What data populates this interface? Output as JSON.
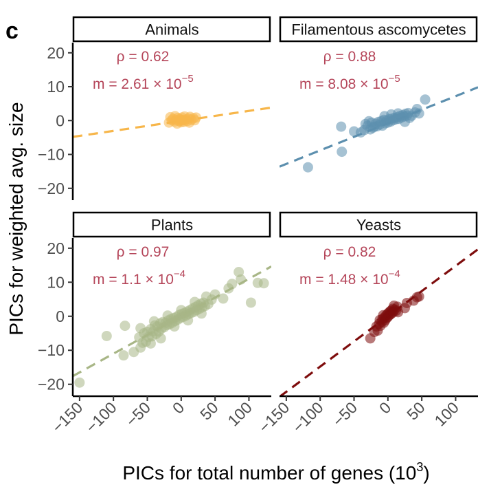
{
  "figure_label": "c",
  "chart_data": {
    "type": "scatter",
    "xlabel": "PICs for total number of genes (10",
    "xlabel_sup": "3",
    "xlabel_close": ")",
    "ylabel": "PICs for weighted avg. size",
    "xlim": [
      -160,
      133
    ],
    "ylim": [
      -23.5,
      23
    ],
    "x_ticks": [
      -150,
      -100,
      -50,
      0,
      50,
      100
    ],
    "x_tick_labels": [
      "−150",
      "−100",
      "−50",
      "0",
      "50",
      "100"
    ],
    "y_ticks": [
      20,
      10,
      0,
      -10,
      -20
    ],
    "y_tick_labels": [
      "20",
      "10",
      "0",
      "−10",
      "−20"
    ],
    "panels": [
      {
        "name": "Animals",
        "color": "#F7B64A",
        "rho_label": "ρ = 0.62",
        "m_label": "m = 2.61 × 10",
        "m_exp": "−5",
        "slope": 0.0295,
        "intercept": -0.1,
        "points": [
          [
            -18,
            -0.6
          ],
          [
            -14,
            0.1
          ],
          [
            -12,
            0.5
          ],
          [
            -10,
            -0.3
          ],
          [
            -8,
            0.2
          ],
          [
            -6,
            -0.9
          ],
          [
            -5,
            0.8
          ],
          [
            -3,
            -0.2
          ],
          [
            -2,
            0.4
          ],
          [
            0,
            -0.5
          ],
          [
            1,
            0.9
          ],
          [
            2,
            0.1
          ],
          [
            4,
            -0.4
          ],
          [
            5,
            1.2
          ],
          [
            7,
            0.3
          ],
          [
            9,
            -0.1
          ],
          [
            11,
            0.6
          ],
          [
            13,
            1.1
          ],
          [
            15,
            0.2
          ],
          [
            18,
            0.7
          ],
          [
            20,
            0.1
          ],
          [
            22,
            0.9
          ],
          [
            -16,
            1.0
          ],
          [
            -9,
            1.3
          ],
          [
            12,
            -0.6
          ],
          [
            -1,
            0.0
          ],
          [
            3,
            0.2
          ]
        ]
      },
      {
        "name": "Filamentous ascomycetes",
        "color": "#5C8FAE",
        "rho_label": "ρ = 0.88",
        "m_label": "m = 8.08 × 10",
        "m_exp": "−5",
        "slope": 0.08,
        "intercept": -0.8,
        "points": [
          [
            -118,
            -13.8
          ],
          [
            -69,
            -1.8
          ],
          [
            -68,
            -9.2
          ],
          [
            -50,
            -3.2
          ],
          [
            -40,
            -3.5
          ],
          [
            -35,
            -2.8
          ],
          [
            -30,
            -1.5
          ],
          [
            -26,
            -2.6
          ],
          [
            -24,
            -0.6
          ],
          [
            -20,
            -1.8
          ],
          [
            -18,
            -0.9
          ],
          [
            -16,
            -1.7
          ],
          [
            -14,
            -0.4
          ],
          [
            -12,
            -1.2
          ],
          [
            -10,
            -0.2
          ],
          [
            -8,
            -1.5
          ],
          [
            -6,
            0.2
          ],
          [
            -4,
            -0.8
          ],
          [
            -2,
            0.0
          ],
          [
            0,
            -0.6
          ],
          [
            2,
            0.4
          ],
          [
            4,
            -0.3
          ],
          [
            6,
            0.6
          ],
          [
            8,
            0.1
          ],
          [
            10,
            0.8
          ],
          [
            12,
            0.4
          ],
          [
            14,
            1.0
          ],
          [
            16,
            0.5
          ],
          [
            18,
            1.4
          ],
          [
            20,
            0.9
          ],
          [
            22,
            1.6
          ],
          [
            24,
            1.2
          ],
          [
            26,
            2.0
          ],
          [
            28,
            1.4
          ],
          [
            30,
            2.2
          ],
          [
            32,
            0.8
          ],
          [
            35,
            1.4
          ],
          [
            40,
            2.4
          ],
          [
            43,
            3.4
          ],
          [
            46,
            2.1
          ],
          [
            55,
            6.2
          ],
          [
            -22,
            -2.1
          ],
          [
            -28,
            -0.2
          ],
          [
            -33,
            -1.0
          ],
          [
            5,
            1.8
          ],
          [
            15,
            2.1
          ],
          [
            -5,
            1.3
          ],
          [
            25,
            -0.4
          ]
        ]
      },
      {
        "name": "Plants",
        "color": "#A8B686",
        "rho_label": "ρ = 0.97",
        "m_label": "m = 1.1 × 10",
        "m_exp": "−4",
        "slope": 0.11,
        "intercept": 0.0,
        "points": [
          [
            -150,
            -19.5
          ],
          [
            -110,
            -5.8
          ],
          [
            -85,
            -11.5
          ],
          [
            -83,
            -2.8
          ],
          [
            -70,
            -10.5
          ],
          [
            -62,
            -6.2
          ],
          [
            -60,
            -9.2
          ],
          [
            -57,
            -7.8
          ],
          [
            -55,
            -5.0
          ],
          [
            -52,
            -7.5
          ],
          [
            -50,
            -4.6
          ],
          [
            -48,
            -6.1
          ],
          [
            -45,
            -3.8
          ],
          [
            -43,
            -5.9
          ],
          [
            -41,
            -4.4
          ],
          [
            -39,
            -2.7
          ],
          [
            -37,
            -5.2
          ],
          [
            -35,
            -3.0
          ],
          [
            -33,
            -4.5
          ],
          [
            -31,
            -2.1
          ],
          [
            -29,
            -3.6
          ],
          [
            -27,
            -1.7
          ],
          [
            -25,
            -3.2
          ],
          [
            -23,
            -1.9
          ],
          [
            -21,
            -2.6
          ],
          [
            -19,
            -1.2
          ],
          [
            -17,
            -2.3
          ],
          [
            -15,
            -0.8
          ],
          [
            -13,
            -1.9
          ],
          [
            -11,
            -0.5
          ],
          [
            -9,
            -1.4
          ],
          [
            -7,
            -0.2
          ],
          [
            -5,
            -1.0
          ],
          [
            -3,
            0.4
          ],
          [
            -1,
            -0.5
          ],
          [
            1,
            0.7
          ],
          [
            3,
            -0.2
          ],
          [
            5,
            1.0
          ],
          [
            7,
            0.2
          ],
          [
            9,
            1.4
          ],
          [
            11,
            0.6
          ],
          [
            13,
            1.8
          ],
          [
            15,
            1.0
          ],
          [
            17,
            2.3
          ],
          [
            19,
            1.3
          ],
          [
            21,
            2.7
          ],
          [
            23,
            1.8
          ],
          [
            25,
            3.2
          ],
          [
            27,
            2.2
          ],
          [
            29,
            3.7
          ],
          [
            31,
            2.6
          ],
          [
            33,
            4.0
          ],
          [
            35,
            3.0
          ],
          [
            37,
            5.8
          ],
          [
            40,
            3.6
          ],
          [
            45,
            4.9
          ],
          [
            50,
            6.4
          ],
          [
            62,
            5.2
          ],
          [
            70,
            8.2
          ],
          [
            75,
            9.5
          ],
          [
            85,
            13.0
          ],
          [
            88,
            10.8
          ],
          [
            103,
            4.0
          ],
          [
            113,
            9.8
          ],
          [
            122,
            9.7
          ],
          [
            -30,
            -6.5
          ],
          [
            -20,
            0.2
          ],
          [
            -10,
            -3.0
          ],
          [
            0,
            1.8
          ],
          [
            10,
            -1.2
          ],
          [
            20,
            4.2
          ],
          [
            30,
            0.8
          ],
          [
            -40,
            -1.5
          ],
          [
            -60,
            -3.5
          ],
          [
            -45,
            -8.0
          ]
        ]
      },
      {
        "name": "Yeasts",
        "color": "#7E0D0D",
        "rho_label": "ρ = 0.82",
        "m_label": "m = 1.48 × 10",
        "m_exp": "−4",
        "slope": 0.148,
        "intercept": 0.0,
        "points": [
          [
            -26,
            -6.5
          ],
          [
            -20,
            -4.6
          ],
          [
            -17,
            -3.0
          ],
          [
            -15,
            -4.2
          ],
          [
            -13,
            -2.2
          ],
          [
            -11,
            -2.8
          ],
          [
            -9,
            -1.6
          ],
          [
            -8,
            -0.8
          ],
          [
            -6,
            -1.9
          ],
          [
            -5,
            -0.4
          ],
          [
            -4,
            -1.2
          ],
          [
            -3,
            0.2
          ],
          [
            -2,
            -0.6
          ],
          [
            -1,
            0.6
          ],
          [
            0,
            -0.2
          ],
          [
            1,
            1.0
          ],
          [
            2,
            0.3
          ],
          [
            3,
            1.4
          ],
          [
            4,
            0.6
          ],
          [
            5,
            1.7
          ],
          [
            6,
            0.9
          ],
          [
            7,
            2.2
          ],
          [
            8,
            1.3
          ],
          [
            10,
            2.0
          ],
          [
            12,
            1.6
          ],
          [
            14,
            2.8
          ],
          [
            25,
            2.4
          ],
          [
            28,
            3.9
          ],
          [
            38,
            4.6
          ],
          [
            43,
            5.6
          ],
          [
            46,
            5.8
          ],
          [
            -7,
            0.3
          ],
          [
            9,
            3.1
          ],
          [
            -12,
            -1.1
          ],
          [
            15,
            1.2
          ]
        ]
      }
    ]
  }
}
